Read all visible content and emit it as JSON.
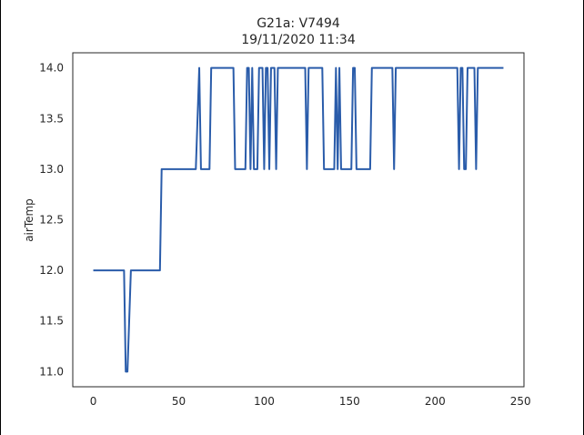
{
  "chart_data": {
    "type": "line",
    "title": "G21a: V7494",
    "subtitle": "19/11/2020 11:34",
    "xlabel": "",
    "ylabel": "airTemp",
    "xlim": [
      -12,
      252
    ],
    "ylim": [
      10.85,
      14.15
    ],
    "grid": false,
    "x_ticks": [
      0,
      50,
      100,
      150,
      200,
      250
    ],
    "y_ticks": [
      11.0,
      11.5,
      12.0,
      12.5,
      13.0,
      13.5,
      14.0
    ],
    "series": [
      {
        "color": "#2a5caa",
        "x": [
          0,
          18,
          19,
          20,
          22,
          39,
          40,
          60,
          62,
          63,
          68,
          69,
          70,
          82,
          83,
          89,
          90,
          91,
          92,
          93,
          94,
          96,
          97,
          99,
          100,
          101,
          102,
          103,
          104,
          106,
          107,
          108,
          109,
          124,
          125,
          126,
          134,
          135,
          136,
          141,
          142,
          143,
          144,
          145,
          146,
          151,
          152,
          153,
          154,
          156,
          157,
          162,
          163,
          164,
          175,
          176,
          177,
          189,
          200,
          213,
          214,
          215,
          216,
          217,
          218,
          219,
          220,
          221,
          222,
          223,
          224,
          225,
          226,
          227,
          228,
          230,
          240
        ],
        "y": [
          12,
          12,
          11,
          11,
          12,
          12,
          13,
          13,
          14,
          13,
          13,
          14,
          14,
          14,
          13,
          13,
          14,
          14,
          13,
          14,
          13,
          13,
          14,
          14,
          13,
          14,
          14,
          13,
          14,
          14,
          13,
          14,
          14,
          14,
          13,
          14,
          14,
          13,
          13,
          13,
          14,
          13,
          14,
          13,
          13,
          13,
          14,
          14,
          13,
          13,
          13,
          13,
          14,
          14,
          14,
          13,
          14,
          14,
          14,
          14,
          13,
          14,
          14,
          13,
          13,
          14,
          14,
          14,
          14,
          14,
          13,
          14,
          14,
          14,
          14,
          14,
          14
        ]
      }
    ]
  }
}
